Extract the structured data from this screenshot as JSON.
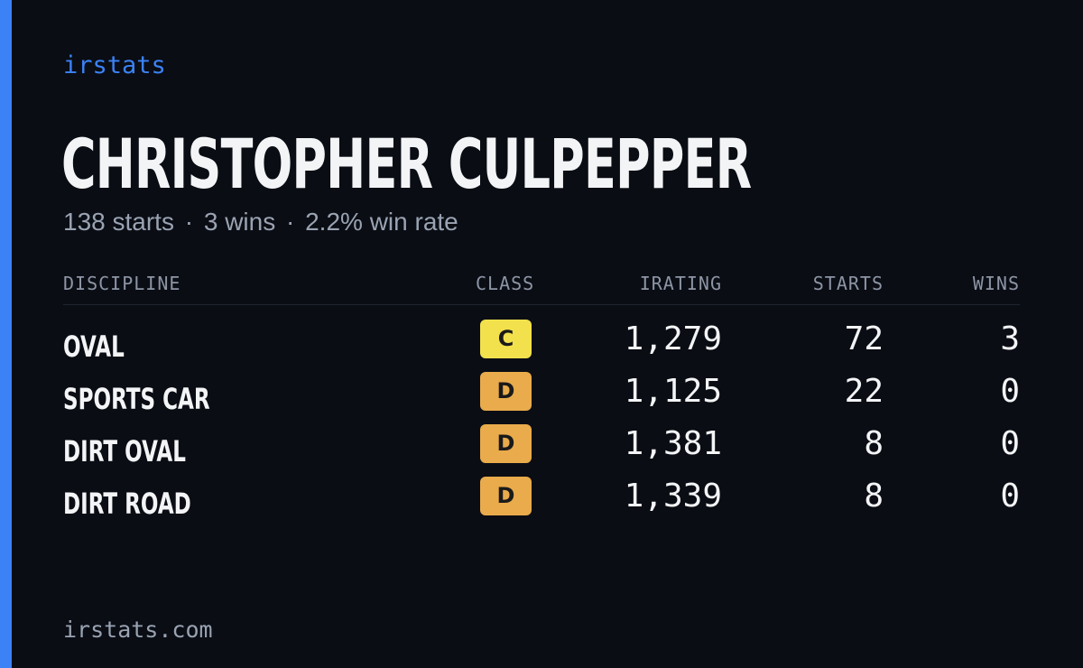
{
  "brand": "irstats",
  "player": {
    "name": "CHRISTOPHER CULPEPPER",
    "starts_text": "138 starts",
    "wins_text": "3 wins",
    "win_rate_text": "2.2% win rate",
    "separator": "·"
  },
  "table": {
    "headers": {
      "discipline": "DISCIPLINE",
      "class": "CLASS",
      "irating": "IRATING",
      "starts": "STARTS",
      "wins": "WINS"
    },
    "rows": [
      {
        "discipline": "OVAL",
        "class": "C",
        "class_color": "#f2e14c",
        "irating": "1,279",
        "starts": "72",
        "wins": "3"
      },
      {
        "discipline": "SPORTS CAR",
        "class": "D",
        "class_color": "#e9ab4b",
        "irating": "1,125",
        "starts": "22",
        "wins": "0"
      },
      {
        "discipline": "DIRT OVAL",
        "class": "D",
        "class_color": "#e9ab4b",
        "irating": "1,381",
        "starts": "8",
        "wins": "0"
      },
      {
        "discipline": "DIRT ROAD",
        "class": "D",
        "class_color": "#e9ab4b",
        "irating": "1,339",
        "starts": "8",
        "wins": "0"
      }
    ]
  },
  "footer": "irstats.com",
  "colors": {
    "accent": "#3b82f6",
    "background": "#0a0d14",
    "muted_text": "#9aa3b2"
  }
}
